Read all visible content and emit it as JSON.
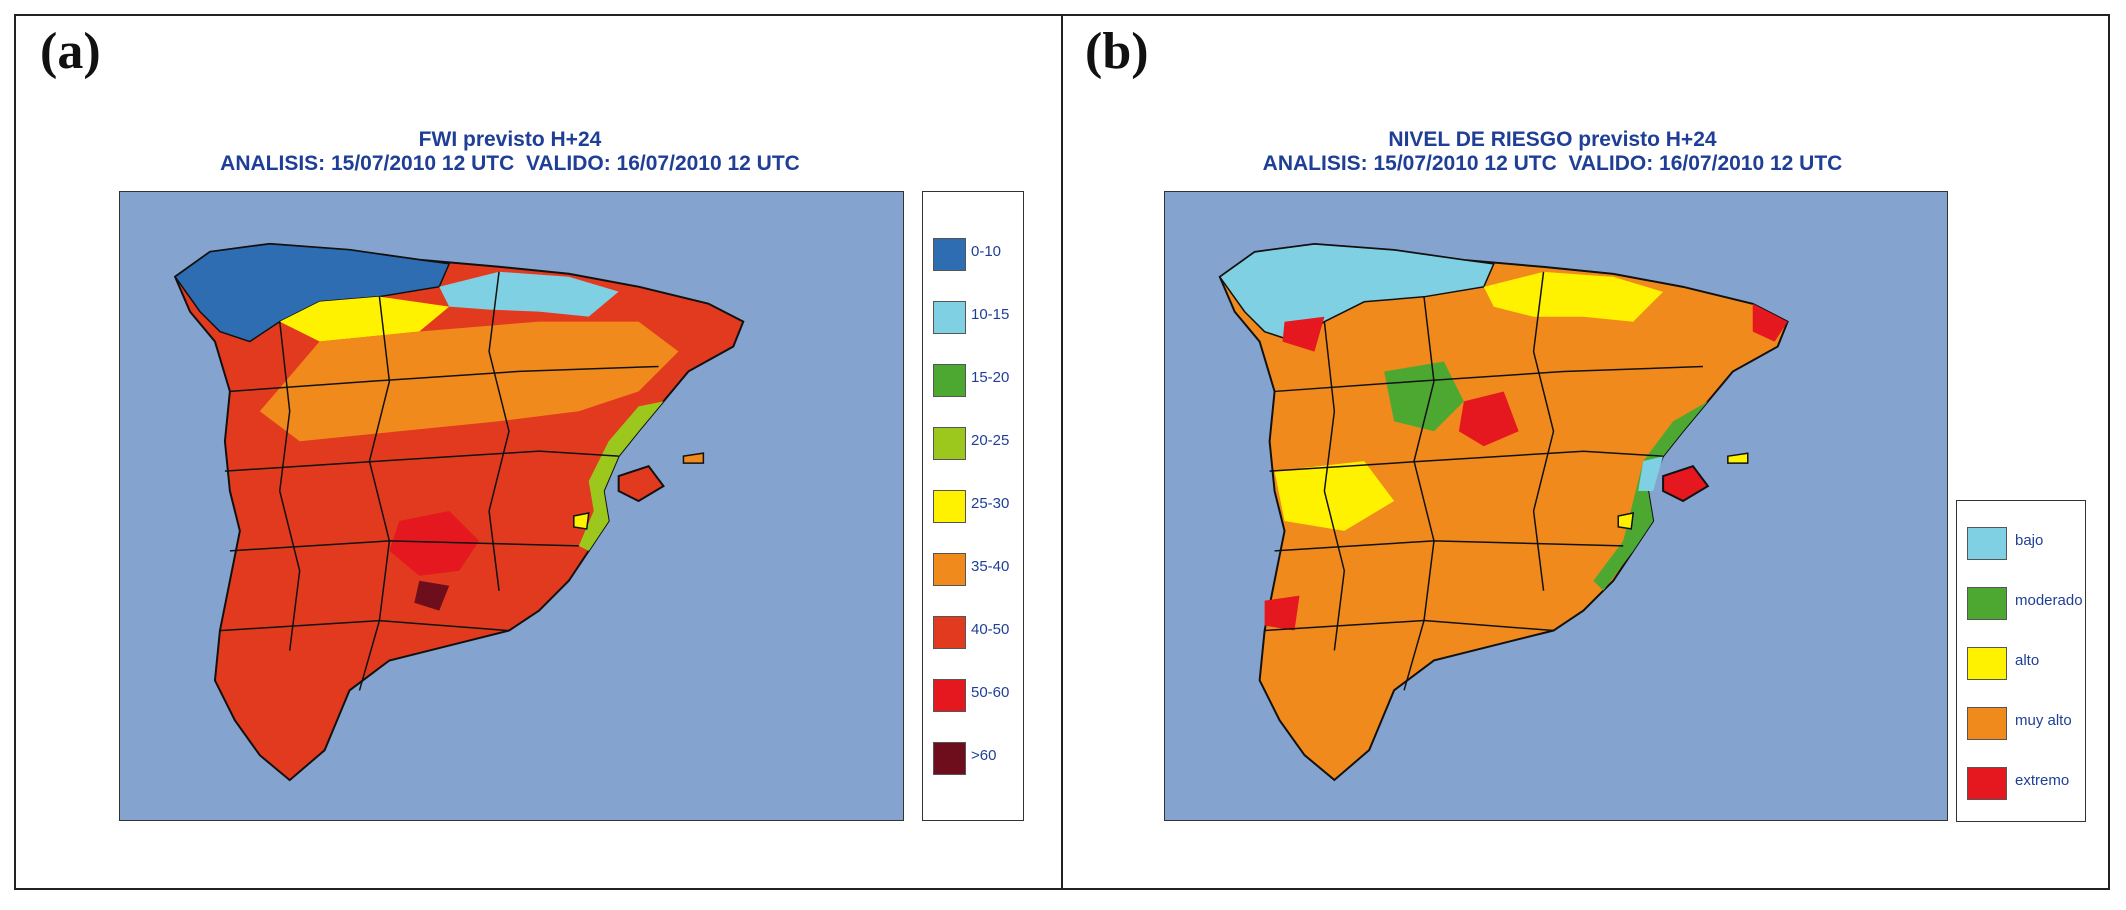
{
  "panels": [
    {
      "label": "(a)",
      "title_line1": "FWI previsto H+24",
      "title_line2": "ANALISIS: 15/07/2010 12 UTC  VALIDO: 16/07/2010 12 UTC",
      "legend": [
        {
          "label": "0-10",
          "color": "#2f6db3"
        },
        {
          "label": "10-15",
          "color": "#7fd0e2"
        },
        {
          "label": "15-20",
          "color": "#4da832"
        },
        {
          "label": "20-25",
          "color": "#9cc71d"
        },
        {
          "label": "25-30",
          "color": "#fff200"
        },
        {
          "label": "35-40",
          "color": "#f08a1c"
        },
        {
          "label": "40-50",
          "color": "#e23a1e"
        },
        {
          "label": "50-60",
          "color": "#e5171f"
        },
        {
          "label": ">60",
          "color": "#6e0d1c"
        }
      ],
      "map_colors": {
        "land": "#e23a1e",
        "north": "#2f6db3",
        "sea": "#85a3cf"
      }
    },
    {
      "label": "(b)",
      "title_line1": "NIVEL DE RIESGO previsto H+24",
      "title_line2": "ANALISIS: 15/07/2010 12 UTC  VALIDO: 16/07/2010 12 UTC",
      "legend": [
        {
          "label": "bajo",
          "color": "#7fd0e2"
        },
        {
          "label": "moderado",
          "color": "#4da832"
        },
        {
          "label": "alto",
          "color": "#fff200"
        },
        {
          "label": "muy alto",
          "color": "#f08a1c"
        },
        {
          "label": "extremo",
          "color": "#e5171f"
        }
      ],
      "map_colors": {
        "land": "#f08a1c",
        "north": "#7fd0e2",
        "sea": "#85a3cf"
      }
    }
  ]
}
